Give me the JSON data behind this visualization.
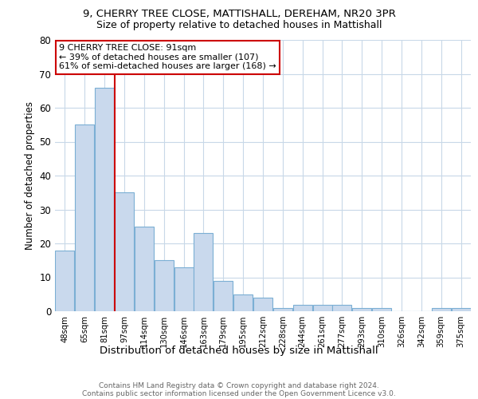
{
  "title1": "9, CHERRY TREE CLOSE, MATTISHALL, DEREHAM, NR20 3PR",
  "title2": "Size of property relative to detached houses in Mattishall",
  "xlabel": "Distribution of detached houses by size in Mattishall",
  "ylabel": "Number of detached properties",
  "categories": [
    "48sqm",
    "65sqm",
    "81sqm",
    "97sqm",
    "114sqm",
    "130sqm",
    "146sqm",
    "163sqm",
    "179sqm",
    "195sqm",
    "212sqm",
    "228sqm",
    "244sqm",
    "261sqm",
    "277sqm",
    "293sqm",
    "310sqm",
    "326sqm",
    "342sqm",
    "359sqm",
    "375sqm"
  ],
  "values": [
    18,
    55,
    66,
    35,
    25,
    15,
    13,
    23,
    9,
    5,
    4,
    1,
    2,
    2,
    2,
    1,
    1,
    0,
    0,
    1,
    1
  ],
  "bar_color": "#c9d9ed",
  "bar_edge_color": "#7bafd4",
  "background_color": "#ffffff",
  "grid_color": "#c8d8e8",
  "vline_x": 2.5,
  "vline_color": "#cc0000",
  "annotation_text": "9 CHERRY TREE CLOSE: 91sqm\n← 39% of detached houses are smaller (107)\n61% of semi-detached houses are larger (168) →",
  "annotation_box_color": "#ffffff",
  "annotation_box_edge": "#cc0000",
  "footer1": "Contains HM Land Registry data © Crown copyright and database right 2024.",
  "footer2": "Contains public sector information licensed under the Open Government Licence v3.0.",
  "ylim": [
    0,
    80
  ],
  "yticks": [
    0,
    10,
    20,
    30,
    40,
    50,
    60,
    70,
    80
  ]
}
